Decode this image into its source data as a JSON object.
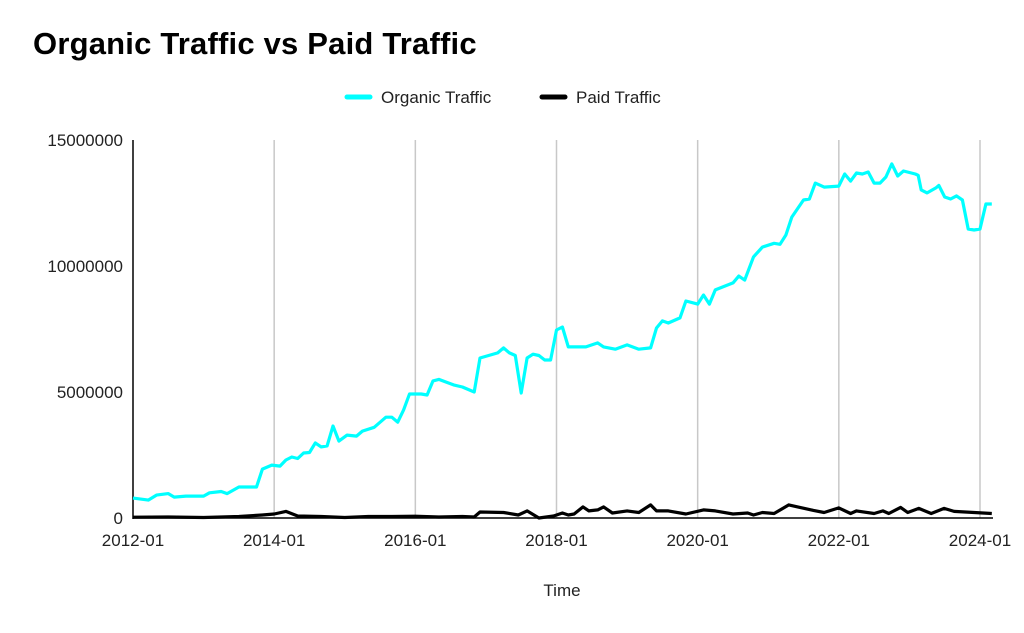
{
  "chart_data": {
    "type": "line",
    "title": "Organic Traffic vs Paid Traffic",
    "xlabel": "Time",
    "ylabel": "",
    "x_unit": "months since 2012-01",
    "xlim": [
      0,
      146
    ],
    "ylim": [
      0,
      15000000
    ],
    "y_ticks": [
      0,
      5000000,
      10000000,
      15000000
    ],
    "y_tick_labels": [
      "0",
      "5000000",
      "10000000",
      "15000000"
    ],
    "x_ticks": [
      0,
      24,
      48,
      72,
      96,
      120,
      144
    ],
    "x_tick_labels": [
      "2012-01",
      "2014-01",
      "2016-01",
      "2018-01",
      "2020-01",
      "2022-01",
      "2024-01"
    ],
    "grid": "vertical",
    "legend_position": "top",
    "series": [
      {
        "name": "Organic Traffic",
        "color": "#00FFFF",
        "points": [
          [
            0,
            790000
          ],
          [
            2.6,
            710000
          ],
          [
            4,
            910000
          ],
          [
            6,
            970000
          ],
          [
            7,
            830000
          ],
          [
            9,
            870000
          ],
          [
            12,
            870000
          ],
          [
            13,
            1000000
          ],
          [
            15,
            1050000
          ],
          [
            16,
            970000
          ],
          [
            18,
            1230000
          ],
          [
            21,
            1230000
          ],
          [
            22,
            1940000
          ],
          [
            23.6,
            2100000
          ],
          [
            25,
            2060000
          ],
          [
            26,
            2300000
          ],
          [
            27,
            2420000
          ],
          [
            28,
            2360000
          ],
          [
            29,
            2580000
          ],
          [
            30,
            2600000
          ],
          [
            31,
            2980000
          ],
          [
            32,
            2820000
          ],
          [
            33,
            2860000
          ],
          [
            34,
            3650000
          ],
          [
            35,
            3050000
          ],
          [
            36.4,
            3290000
          ],
          [
            38,
            3250000
          ],
          [
            39,
            3450000
          ],
          [
            41,
            3600000
          ],
          [
            43,
            4000000
          ],
          [
            44,
            4000000
          ],
          [
            45,
            3800000
          ],
          [
            46,
            4290000
          ],
          [
            47,
            4920000
          ],
          [
            49,
            4920000
          ],
          [
            50,
            4880000
          ],
          [
            51,
            5440000
          ],
          [
            52,
            5500000
          ],
          [
            54.5,
            5280000
          ],
          [
            56,
            5200000
          ],
          [
            58,
            5000000
          ],
          [
            59,
            6350000
          ],
          [
            62,
            6550000
          ],
          [
            63,
            6750000
          ],
          [
            64,
            6550000
          ],
          [
            65,
            6450000
          ],
          [
            66,
            4960000
          ],
          [
            67,
            6350000
          ],
          [
            68,
            6500000
          ],
          [
            69,
            6450000
          ],
          [
            70,
            6270000
          ],
          [
            71,
            6270000
          ],
          [
            72,
            7460000
          ],
          [
            73,
            7580000
          ],
          [
            74,
            6790000
          ],
          [
            77,
            6790000
          ],
          [
            79,
            6950000
          ],
          [
            80,
            6790000
          ],
          [
            82,
            6700000
          ],
          [
            84,
            6870000
          ],
          [
            86,
            6700000
          ],
          [
            88,
            6750000
          ],
          [
            89,
            7540000
          ],
          [
            90,
            7820000
          ],
          [
            91,
            7740000
          ],
          [
            93,
            7940000
          ],
          [
            94,
            8610000
          ],
          [
            96,
            8490000
          ],
          [
            97,
            8850000
          ],
          [
            98,
            8490000
          ],
          [
            99,
            9050000
          ],
          [
            102,
            9330000
          ],
          [
            103,
            9600000
          ],
          [
            104,
            9440000
          ],
          [
            105.5,
            10360000
          ],
          [
            107,
            10750000
          ],
          [
            109,
            10900000
          ],
          [
            110,
            10860000
          ],
          [
            111,
            11230000
          ],
          [
            112,
            11940000
          ],
          [
            114,
            12620000
          ],
          [
            115,
            12660000
          ],
          [
            116,
            13290000
          ],
          [
            117.5,
            13130000
          ],
          [
            120,
            13170000
          ],
          [
            121,
            13650000
          ],
          [
            122,
            13370000
          ],
          [
            123,
            13690000
          ],
          [
            124,
            13650000
          ],
          [
            125,
            13730000
          ],
          [
            126,
            13290000
          ],
          [
            127,
            13290000
          ],
          [
            128,
            13530000
          ],
          [
            129,
            14050000
          ],
          [
            130,
            13570000
          ],
          [
            131,
            13770000
          ],
          [
            133,
            13650000
          ],
          [
            133.5,
            13600000
          ],
          [
            134,
            13020000
          ],
          [
            135,
            12900000
          ],
          [
            136.5,
            13100000
          ],
          [
            137,
            13200000
          ],
          [
            138,
            12740000
          ],
          [
            139,
            12660000
          ],
          [
            140,
            12780000
          ],
          [
            141,
            12620000
          ],
          [
            142,
            11470000
          ],
          [
            143,
            11430000
          ],
          [
            144,
            11470000
          ],
          [
            145,
            12460000
          ],
          [
            146,
            12460000
          ]
        ]
      },
      {
        "name": "Paid Traffic",
        "color": "#000000",
        "points": [
          [
            0,
            30000
          ],
          [
            6,
            40000
          ],
          [
            12,
            20000
          ],
          [
            18,
            60000
          ],
          [
            22,
            120000
          ],
          [
            24,
            160000
          ],
          [
            26,
            260000
          ],
          [
            28,
            80000
          ],
          [
            32,
            60000
          ],
          [
            36,
            20000
          ],
          [
            40,
            60000
          ],
          [
            44,
            60000
          ],
          [
            48,
            70000
          ],
          [
            52,
            40000
          ],
          [
            56,
            60000
          ],
          [
            58,
            40000
          ],
          [
            59,
            240000
          ],
          [
            63,
            220000
          ],
          [
            65.5,
            120000
          ],
          [
            67,
            280000
          ],
          [
            69,
            0
          ],
          [
            71.5,
            80000
          ],
          [
            73,
            200000
          ],
          [
            74,
            120000
          ],
          [
            75,
            160000
          ],
          [
            76.5,
            440000
          ],
          [
            77.5,
            280000
          ],
          [
            79,
            320000
          ],
          [
            80,
            440000
          ],
          [
            81.5,
            200000
          ],
          [
            84,
            280000
          ],
          [
            86,
            220000
          ],
          [
            88,
            520000
          ],
          [
            89,
            280000
          ],
          [
            91,
            280000
          ],
          [
            94,
            160000
          ],
          [
            97,
            320000
          ],
          [
            99,
            280000
          ],
          [
            102,
            160000
          ],
          [
            104.5,
            200000
          ],
          [
            105.5,
            120000
          ],
          [
            107,
            220000
          ],
          [
            109,
            180000
          ],
          [
            111.5,
            520000
          ],
          [
            113,
            440000
          ],
          [
            115.7,
            300000
          ],
          [
            117.5,
            220000
          ],
          [
            120,
            400000
          ],
          [
            122,
            180000
          ],
          [
            123,
            280000
          ],
          [
            126,
            180000
          ],
          [
            127.5,
            280000
          ],
          [
            128.5,
            180000
          ],
          [
            130.5,
            420000
          ],
          [
            131.7,
            220000
          ],
          [
            133.6,
            380000
          ],
          [
            135.7,
            180000
          ],
          [
            137.9,
            380000
          ],
          [
            139.6,
            260000
          ],
          [
            143,
            220000
          ],
          [
            146,
            180000
          ]
        ]
      }
    ]
  }
}
